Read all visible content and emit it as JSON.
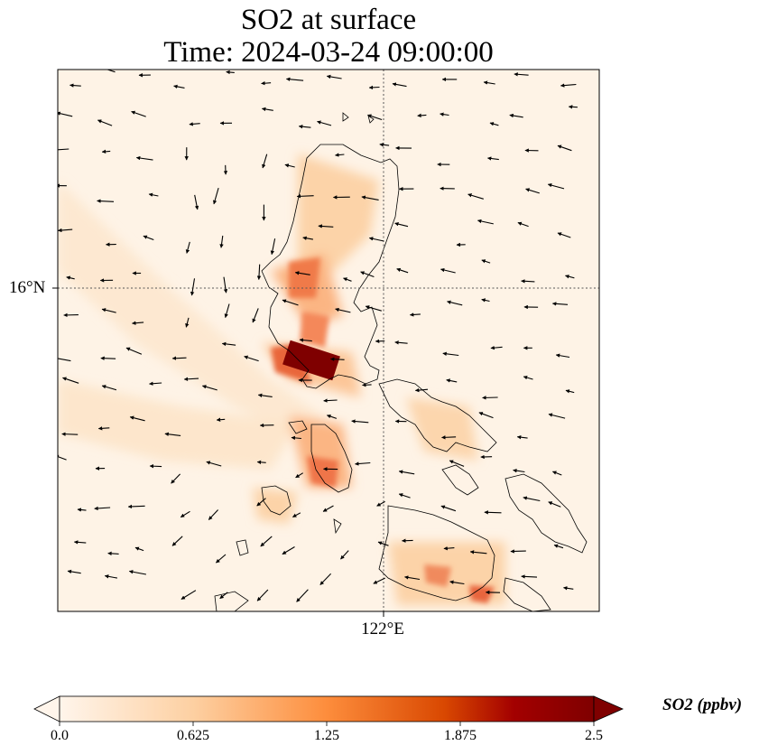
{
  "title": {
    "line1": "SO2 at surface",
    "line2": "Time: 2024-03-24 09:00:00"
  },
  "axes": {
    "lat_label": "16°N",
    "lon_label": "122°E"
  },
  "colorbar": {
    "label": "SO2 (ppbv)",
    "ticks": [
      "0.0",
      "0.625",
      "1.25",
      "1.875",
      "2.5"
    ],
    "min": 0.0,
    "max": 2.5,
    "colors": [
      "#fff5eb",
      "#fdd0a2",
      "#fd8d3c",
      "#d94801",
      "#a30000",
      "#7f0000"
    ]
  }
}
